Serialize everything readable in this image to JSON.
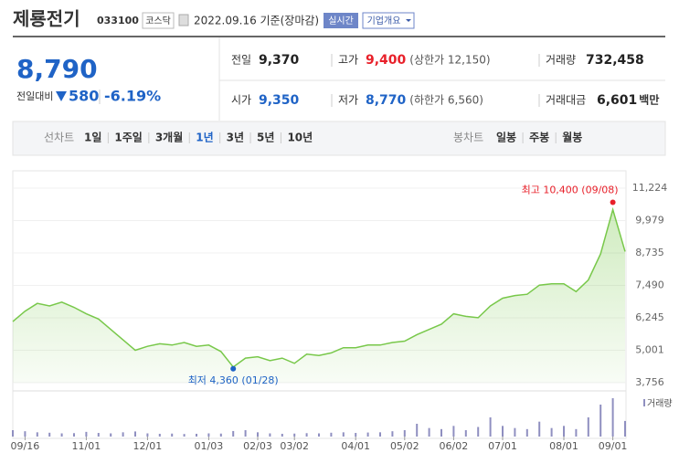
{
  "header": {
    "title": "제룡전기",
    "code": "033100",
    "market": "코스닥",
    "date": "2022.09.16 기준(장마감)",
    "realtime": "실시간",
    "overview": "기업개요"
  },
  "quote": {
    "price": "8,790",
    "change_label": "전일대비",
    "change": "580",
    "change_rate": "-6.19%",
    "rows": [
      [
        {
          "label": "전일",
          "value": "9,370"
        },
        {
          "label": "고가",
          "value": "9,400",
          "note": "(상한가 12,150)"
        },
        {
          "label": "거래량",
          "value": "732,458"
        }
      ],
      [
        {
          "label": "시가",
          "value": "9,350"
        },
        {
          "label": "저가",
          "value": "8,770",
          "note": "(하한가 6,560)"
        },
        {
          "label": "거래대금",
          "value": "6,601",
          "unit": "백만"
        }
      ]
    ]
  },
  "tabs": {
    "line_label": "선차트",
    "line_periods": [
      "1일",
      "1주일",
      "3개월",
      "1년",
      "3년",
      "5년",
      "10년"
    ],
    "selected": "1년",
    "candle_label": "봉차트",
    "candle_periods": [
      "일봉",
      "주봉",
      "월봉"
    ]
  },
  "chart_data": {
    "type": "line",
    "color": "#78c84a",
    "grid": true,
    "categories": [
      null,
      "09/16",
      null,
      null,
      null,
      null,
      "11/01",
      null,
      null,
      null,
      null,
      "12/01",
      null,
      null,
      null,
      null,
      "01/03",
      null,
      null,
      null,
      "02/03",
      null,
      null,
      "03/02",
      null,
      null,
      null,
      null,
      "04/01",
      null,
      null,
      null,
      "05/02",
      null,
      null,
      null,
      "06/02",
      null,
      null,
      null,
      "07/01",
      null,
      null,
      null,
      null,
      "08/01",
      null,
      null,
      null,
      "09/01",
      null
    ],
    "values": [
      6100,
      6500,
      6800,
      6700,
      6850,
      6650,
      6400,
      6200,
      5800,
      5400,
      5000,
      5150,
      5250,
      5200,
      5300,
      5150,
      5200,
      4950,
      4360,
      4700,
      4750,
      4600,
      4700,
      4500,
      4850,
      4800,
      4900,
      5100,
      5100,
      5200,
      5200,
      5300,
      5350,
      5600,
      5800,
      6000,
      6400,
      6300,
      6250,
      6700,
      7000,
      7100,
      7150,
      7500,
      7550,
      7550,
      7250,
      7700,
      8700,
      10400,
      8790
    ],
    "ylim": [
      3756,
      11224
    ],
    "yticks": [
      {
        "value": 11224,
        "label": "11,224"
      },
      {
        "value": 9979,
        "label": "9,979"
      },
      {
        "value": 8735,
        "label": "8,735"
      },
      {
        "value": 7490,
        "label": "7,490"
      },
      {
        "value": 6245,
        "label": "6,245"
      },
      {
        "value": 5001,
        "label": "5,001"
      },
      {
        "value": 3756,
        "label": "3,756"
      }
    ],
    "max_annotation": "최고 10,400 (09/08)",
    "min_annotation": "최저 4,360 (01/28)",
    "max_color": "#e8202a",
    "min_color": "#1f63c6",
    "volume": {
      "name": "거래량",
      "color": "#8f8fc0",
      "values": [
        300000,
        250000,
        200000,
        180000,
        150000,
        160000,
        220000,
        170000,
        150000,
        200000,
        240000,
        150000,
        130000,
        140000,
        120000,
        130000,
        150000,
        140000,
        260000,
        300000,
        200000,
        150000,
        130000,
        140000,
        160000,
        150000,
        180000,
        200000,
        170000,
        190000,
        200000,
        250000,
        300000,
        600000,
        400000,
        350000,
        500000,
        300000,
        450000,
        900000,
        500000,
        400000,
        350000,
        700000,
        400000,
        500000,
        350000,
        900000,
        1500000,
        1800000,
        732458
      ]
    }
  }
}
